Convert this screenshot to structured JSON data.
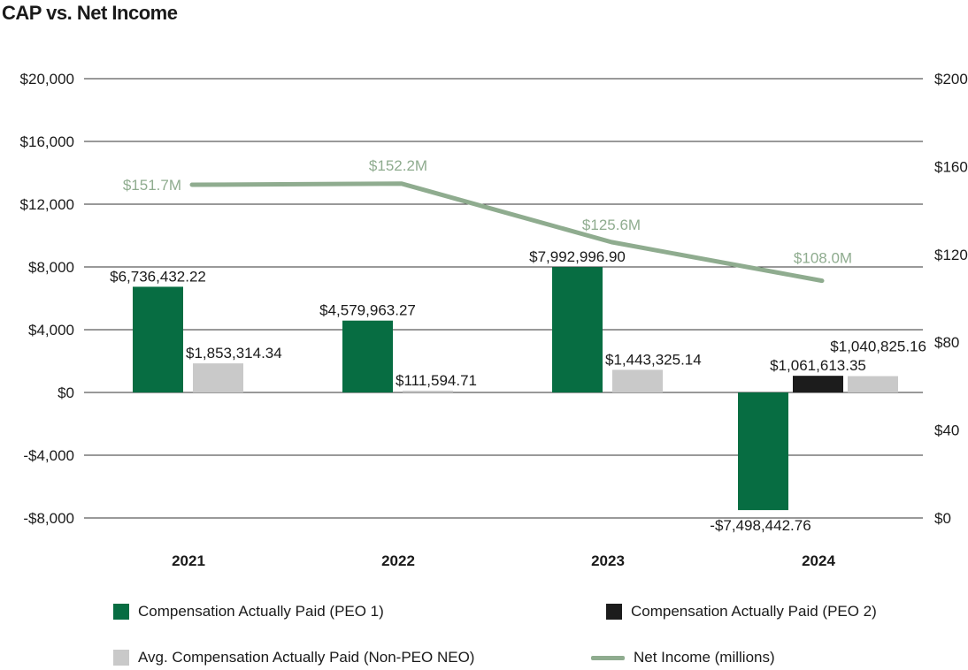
{
  "chart_data": {
    "type": "bar",
    "title": "CAP vs. Net Income",
    "categories": [
      "2021",
      "2022",
      "2023",
      "2024"
    ],
    "left_axis": {
      "ticks": [
        "$20,000",
        "$16,000",
        "$12,000",
        "$8,000",
        "$4,000",
        "$0",
        "-$4,000",
        "-$8,000"
      ],
      "tick_values": [
        20000,
        16000,
        12000,
        8000,
        4000,
        0,
        -4000,
        -8000
      ],
      "ylim": [
        -8000,
        20000
      ]
    },
    "right_axis": {
      "ticks": [
        "$200",
        "$160",
        "$120",
        "$80",
        "$40",
        "$0"
      ],
      "tick_values": [
        200,
        160,
        120,
        80,
        40,
        0
      ],
      "ylim": [
        0,
        200
      ]
    },
    "grid": "horizontal",
    "legend_position": "bottom",
    "series": [
      {
        "name": "Compensation Actually Paid (PEO 1)",
        "kind": "bar",
        "color": "#076d42",
        "values": [
          6736.43222,
          4579.96327,
          7992.9969,
          -7498.44276
        ],
        "labels": [
          "$6,736,432.22",
          "$4,579,963.27",
          "$7,992,996.90",
          "-$7,498,442.76"
        ]
      },
      {
        "name": "Compensation Actually Paid (PEO 2)",
        "kind": "bar",
        "color": "#1c1c1c",
        "values": [
          null,
          null,
          null,
          1061.61335
        ],
        "labels": [
          null,
          null,
          null,
          "$1,061,613.35"
        ]
      },
      {
        "name": "Avg. Compensation Actually Paid (Non-PEO NEO)",
        "kind": "bar",
        "color": "#c9c9c9",
        "values": [
          1853.31434,
          111.59471,
          1443.32514,
          1040.82516
        ],
        "labels": [
          "$1,853,314.34",
          "$111,594.71",
          "$1,443,325.14",
          "$1,040,825.16"
        ]
      },
      {
        "name": "Net Income (millions)",
        "kind": "line",
        "axis": "right",
        "color": "#8fac8f",
        "values": [
          151.7,
          152.2,
          125.6,
          108.0
        ],
        "labels": [
          "$151.7M",
          "$152.2M",
          "$125.6M",
          "$108.0M"
        ]
      }
    ]
  }
}
